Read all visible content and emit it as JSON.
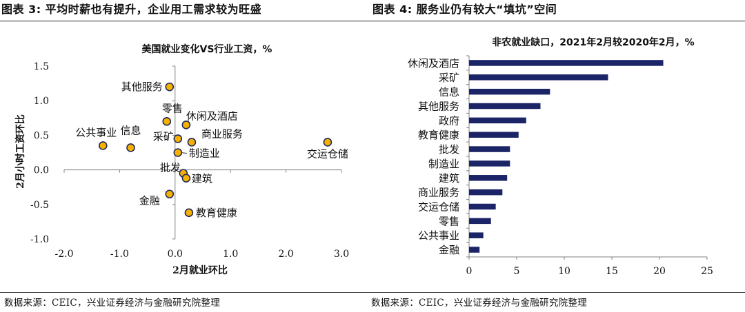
{
  "headers": {
    "left": "图表 3: 平均时薪也有提升，企业用工需求较为旺盛",
    "right": "图表 4: 服务业仍有较大“填坑”空间"
  },
  "footers": {
    "left": "数据来源：CEIC，兴业证券经济与金融研究院整理",
    "right": "数据来源：CEIC，兴业证券经济与金融研究院整理"
  },
  "colors": {
    "point_fill": "#F5B000",
    "point_stroke": "#1F2A5E",
    "bar": "#1B2466",
    "axis": "#808080"
  },
  "chart_data": [
    {
      "type": "scatter",
      "title": "美国就业变化VS行业工资，%",
      "xlabel": "2月就业环比",
      "ylabel": "2月小时工资环比",
      "xlim": [
        -2.0,
        3.0
      ],
      "ylim": [
        -1.0,
        1.5
      ],
      "xticks": [
        "-2.0",
        "-1.0",
        "0.0",
        "1.0",
        "2.0",
        "3.0"
      ],
      "yticks": [
        "1.5",
        "1.0",
        "0.5",
        "0.0",
        "-0.5",
        "-1.0"
      ],
      "points": [
        {
          "label": "其他服务",
          "x": -0.1,
          "y": 1.2
        },
        {
          "label": "零售",
          "x": -0.15,
          "y": 0.7
        },
        {
          "label": "休闲及酒店",
          "x": 0.2,
          "y": 0.65
        },
        {
          "label": "采矿",
          "x": 0.05,
          "y": 0.45
        },
        {
          "label": "商业服务",
          "x": 0.3,
          "y": 0.4
        },
        {
          "label": "公共事业",
          "x": -1.3,
          "y": 0.35
        },
        {
          "label": "信息",
          "x": -0.8,
          "y": 0.32
        },
        {
          "label": "交运仓储",
          "x": 2.75,
          "y": 0.4
        },
        {
          "label": "制造业",
          "x": 0.05,
          "y": 0.25
        },
        {
          "label": "批发",
          "x": 0.15,
          "y": -0.05
        },
        {
          "label": "建筑",
          "x": 0.2,
          "y": -0.12
        },
        {
          "label": "金融",
          "x": -0.1,
          "y": -0.35
        },
        {
          "label": "教育健康",
          "x": 0.25,
          "y": -0.62
        }
      ]
    },
    {
      "type": "bar",
      "orientation": "horizontal",
      "title": "非农就业缺口，2021年2月较2020年2月，%",
      "xlim": [
        0,
        25
      ],
      "xticks": [
        "0",
        "5",
        "10",
        "15",
        "20",
        "25"
      ],
      "categories": [
        "休闲及酒店",
        "采矿",
        "信息",
        "其他服务",
        "政府",
        "教育健康",
        "批发",
        "制造业",
        "建筑",
        "商业服务",
        "交运仓储",
        "零售",
        "公共事业",
        "金融"
      ],
      "values": [
        20.4,
        14.6,
        8.5,
        7.5,
        6.0,
        5.2,
        4.3,
        4.3,
        4.0,
        3.5,
        2.8,
        2.3,
        1.5,
        1.1
      ]
    }
  ]
}
